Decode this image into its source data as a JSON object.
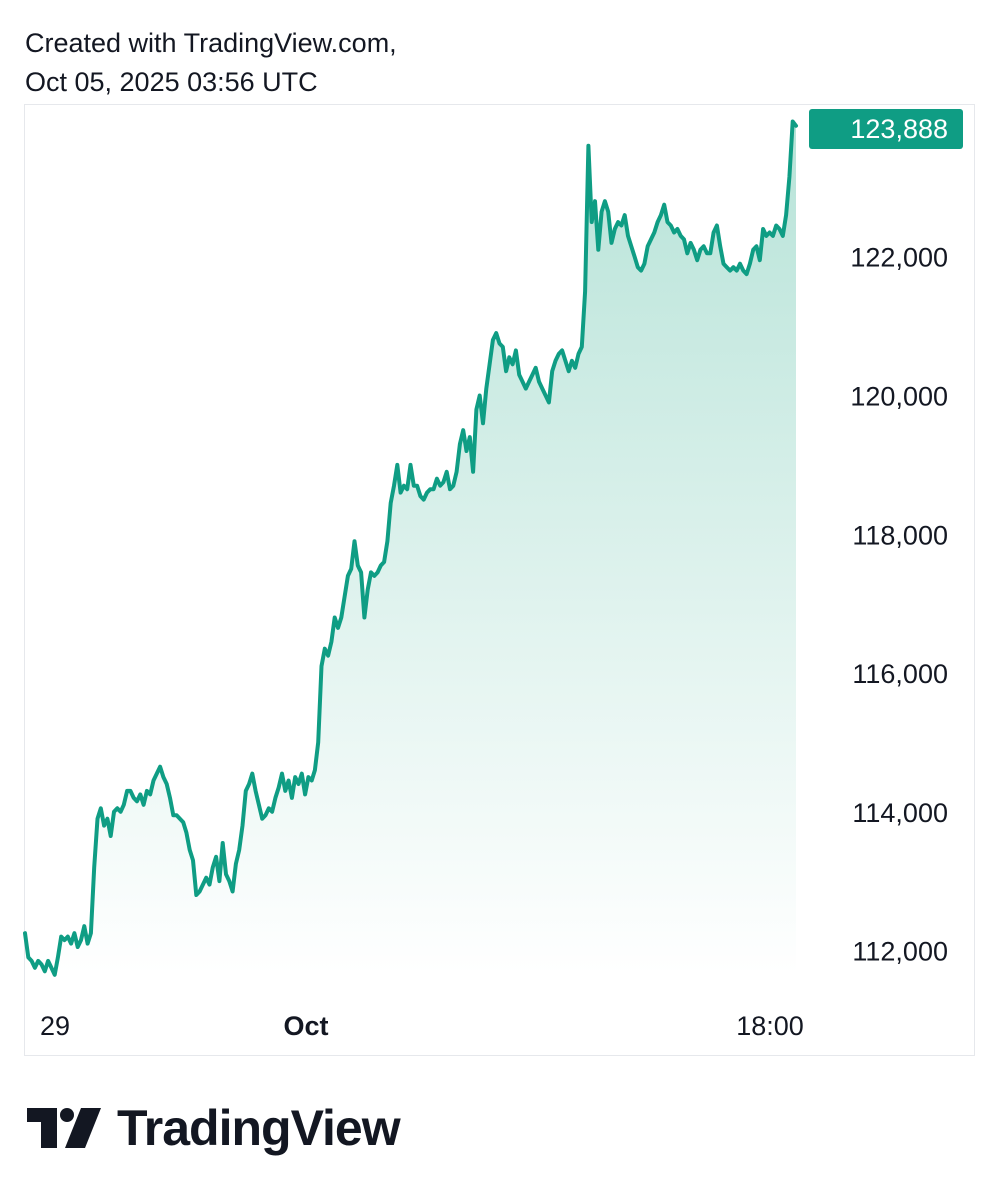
{
  "header": {
    "line1": "Created with TradingView.com,",
    "line2": "Oct 05, 2025 03:56 UTC"
  },
  "logo": {
    "text": "TradingView",
    "icon": "tradingview-logo-icon"
  },
  "colors": {
    "line": "#0f9d84",
    "fill_top": "#b7e3d8",
    "fill_bottom": "#ffffff",
    "price_label_bg": "#0f9d84",
    "text": "#131722",
    "border": "#e6e8ec"
  },
  "chart_data": {
    "type": "area",
    "x_tick_labels": [
      "29",
      "Oct",
      "18:00"
    ],
    "x_tick_bold": [
      false,
      true,
      false
    ],
    "ylim": [
      111700,
      124100
    ],
    "y_ticks": [
      112000,
      114000,
      116000,
      118000,
      120000,
      122000
    ],
    "y_tick_labels": [
      "112,000",
      "114,000",
      "116,000",
      "118,000",
      "120,000",
      "122,000"
    ],
    "last_price_label": "123,888",
    "last_price": 123888,
    "grid": false,
    "series": [
      {
        "values": [
          112250,
          111900,
          111850,
          111750,
          111850,
          111800,
          111700,
          111850,
          111750,
          111650,
          111900,
          112200,
          112150,
          112200,
          112100,
          112250,
          112050,
          112150,
          112350,
          112100,
          112250,
          113200,
          113900,
          114050,
          113800,
          113900,
          113650,
          114000,
          114050,
          114000,
          114100,
          114300,
          114300,
          114200,
          114150,
          114250,
          114100,
          114300,
          114250,
          114450,
          114550,
          114650,
          114500,
          114400,
          114200,
          113950,
          113950,
          113900,
          113850,
          113700,
          113450,
          113300,
          112800,
          112850,
          112950,
          113050,
          112950,
          113200,
          113350,
          113000,
          113550,
          113100,
          113000,
          112850,
          113250,
          113450,
          113800,
          114300,
          114400,
          114550,
          114300,
          114100,
          113900,
          113950,
          114050,
          114000,
          114200,
          114350,
          114550,
          114300,
          114450,
          114200,
          114500,
          114400,
          114550,
          114250,
          114500,
          114450,
          114600,
          115000,
          116100,
          116350,
          116250,
          116450,
          116800,
          116650,
          116800,
          117100,
          117400,
          117500,
          117900,
          117550,
          117450,
          116800,
          117200,
          117450,
          117400,
          117450,
          117550,
          117600,
          117900,
          118450,
          118700,
          119000,
          118600,
          118700,
          118650,
          119000,
          118700,
          118700,
          118550,
          118500,
          118600,
          118650,
          118650,
          118800,
          118700,
          118750,
          118900,
          118650,
          118700,
          118900,
          119300,
          119500,
          119200,
          119400,
          118900,
          119800,
          120000,
          119600,
          120100,
          120450,
          120800,
          120900,
          120750,
          120700,
          120350,
          120550,
          120450,
          120650,
          120300,
          120200,
          120100,
          120200,
          120300,
          120400,
          120200,
          120100,
          120000,
          119900,
          120350,
          120500,
          120600,
          120650,
          120500,
          120350,
          120500,
          120400,
          120600,
          120700,
          121500,
          123600,
          122500,
          122800,
          122100,
          122650,
          122800,
          122650,
          122200,
          122400,
          122500,
          122450,
          122600,
          122300,
          122150,
          122000,
          121850,
          121800,
          121900,
          122150,
          122250,
          122350,
          122500,
          122600,
          122750,
          122500,
          122450,
          122350,
          122400,
          122300,
          122250,
          122050,
          122200,
          122100,
          121950,
          122100,
          122150,
          122050,
          122050,
          122350,
          122450,
          122150,
          121900,
          121850,
          121800,
          121850,
          121800,
          121900,
          121800,
          121750,
          121900,
          122100,
          122150,
          121950,
          122400,
          122300,
          122350,
          122300,
          122450,
          122400,
          122300,
          122600,
          123150,
          123950,
          123888
        ]
      }
    ]
  }
}
